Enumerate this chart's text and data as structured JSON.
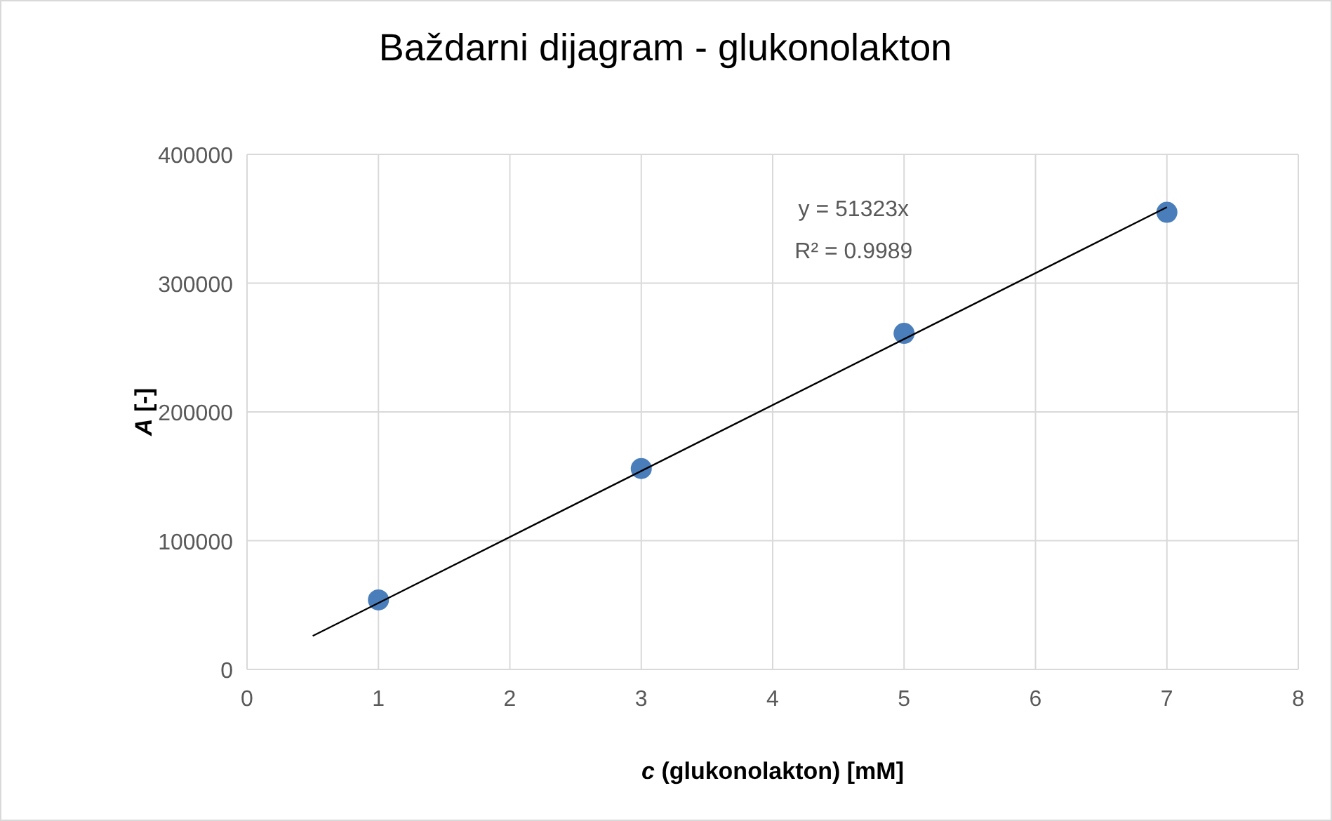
{
  "chart_data": {
    "type": "scatter",
    "title": "Baždarni dijagram - glukonolakton",
    "xlabel": "c (glukonolakton) [mM]",
    "ylabel": "A [-]",
    "x": [
      1,
      3,
      5,
      7
    ],
    "series": [
      {
        "color": "#4a7ebb",
        "values": [
          54000,
          156000,
          261000,
          355000
        ]
      },
      {
        "type": "line",
        "color": "#000000",
        "x": [
          0.5,
          7
        ],
        "values": [
          26000,
          359000
        ],
        "marker": "none"
      }
    ],
    "annotations": [
      "y = 51323x",
      "R² = 0.9989"
    ],
    "xlim": [
      0,
      8
    ],
    "xticks": [
      0,
      1,
      2,
      3,
      4,
      5,
      6,
      7,
      8
    ],
    "ylim": [
      0,
      400000
    ],
    "yticks": [
      0,
      100000,
      200000,
      300000,
      400000
    ],
    "grid": true,
    "marker": "circle"
  }
}
